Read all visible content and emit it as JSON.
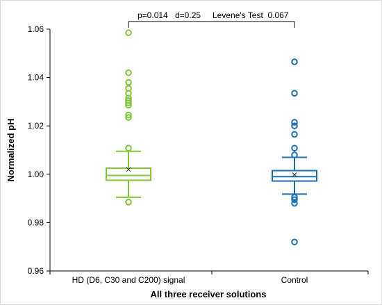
{
  "chart_data": {
    "type": "box",
    "title": "",
    "xlabel": "All three receiver solutions",
    "ylabel": "Normalized pH",
    "ylim": [
      0.96,
      1.06
    ],
    "yticks": [
      "0.96",
      "0.98",
      "1.00",
      "1.02",
      "1.04",
      "1.06"
    ],
    "grid": false,
    "categories": [
      "HD (D6, C30 and C200) signal",
      "Control"
    ],
    "series": [
      {
        "color": "#7dc832",
        "box": {
          "whisker_low": 0.9905,
          "q1": 0.9975,
          "median": 0.9995,
          "q3": 1.0025,
          "whisker_high": 1.0095,
          "mean": 1.002
        },
        "outliers": [
          0.9885,
          1.0108,
          1.0235,
          1.0245,
          1.0285,
          1.0295,
          1.0305,
          1.0315,
          1.0335,
          1.0355,
          1.038,
          1.042,
          1.0585
        ]
      },
      {
        "color": "#1a6fb5",
        "box": {
          "whisker_low": 0.9918,
          "q1": 0.9972,
          "median": 0.999,
          "q3": 1.0015,
          "whisker_high": 1.007,
          "mean": 0.9998
        },
        "outliers": [
          0.972,
          0.988,
          0.9895,
          0.9905,
          1.008,
          1.0108,
          1.0165,
          1.02,
          1.0215,
          1.0335,
          1.0465
        ]
      }
    ],
    "annotation": {
      "p_text": "p=0.014",
      "d_text": "d=0.25",
      "levene_text": "Levene's Test  0.067"
    }
  }
}
